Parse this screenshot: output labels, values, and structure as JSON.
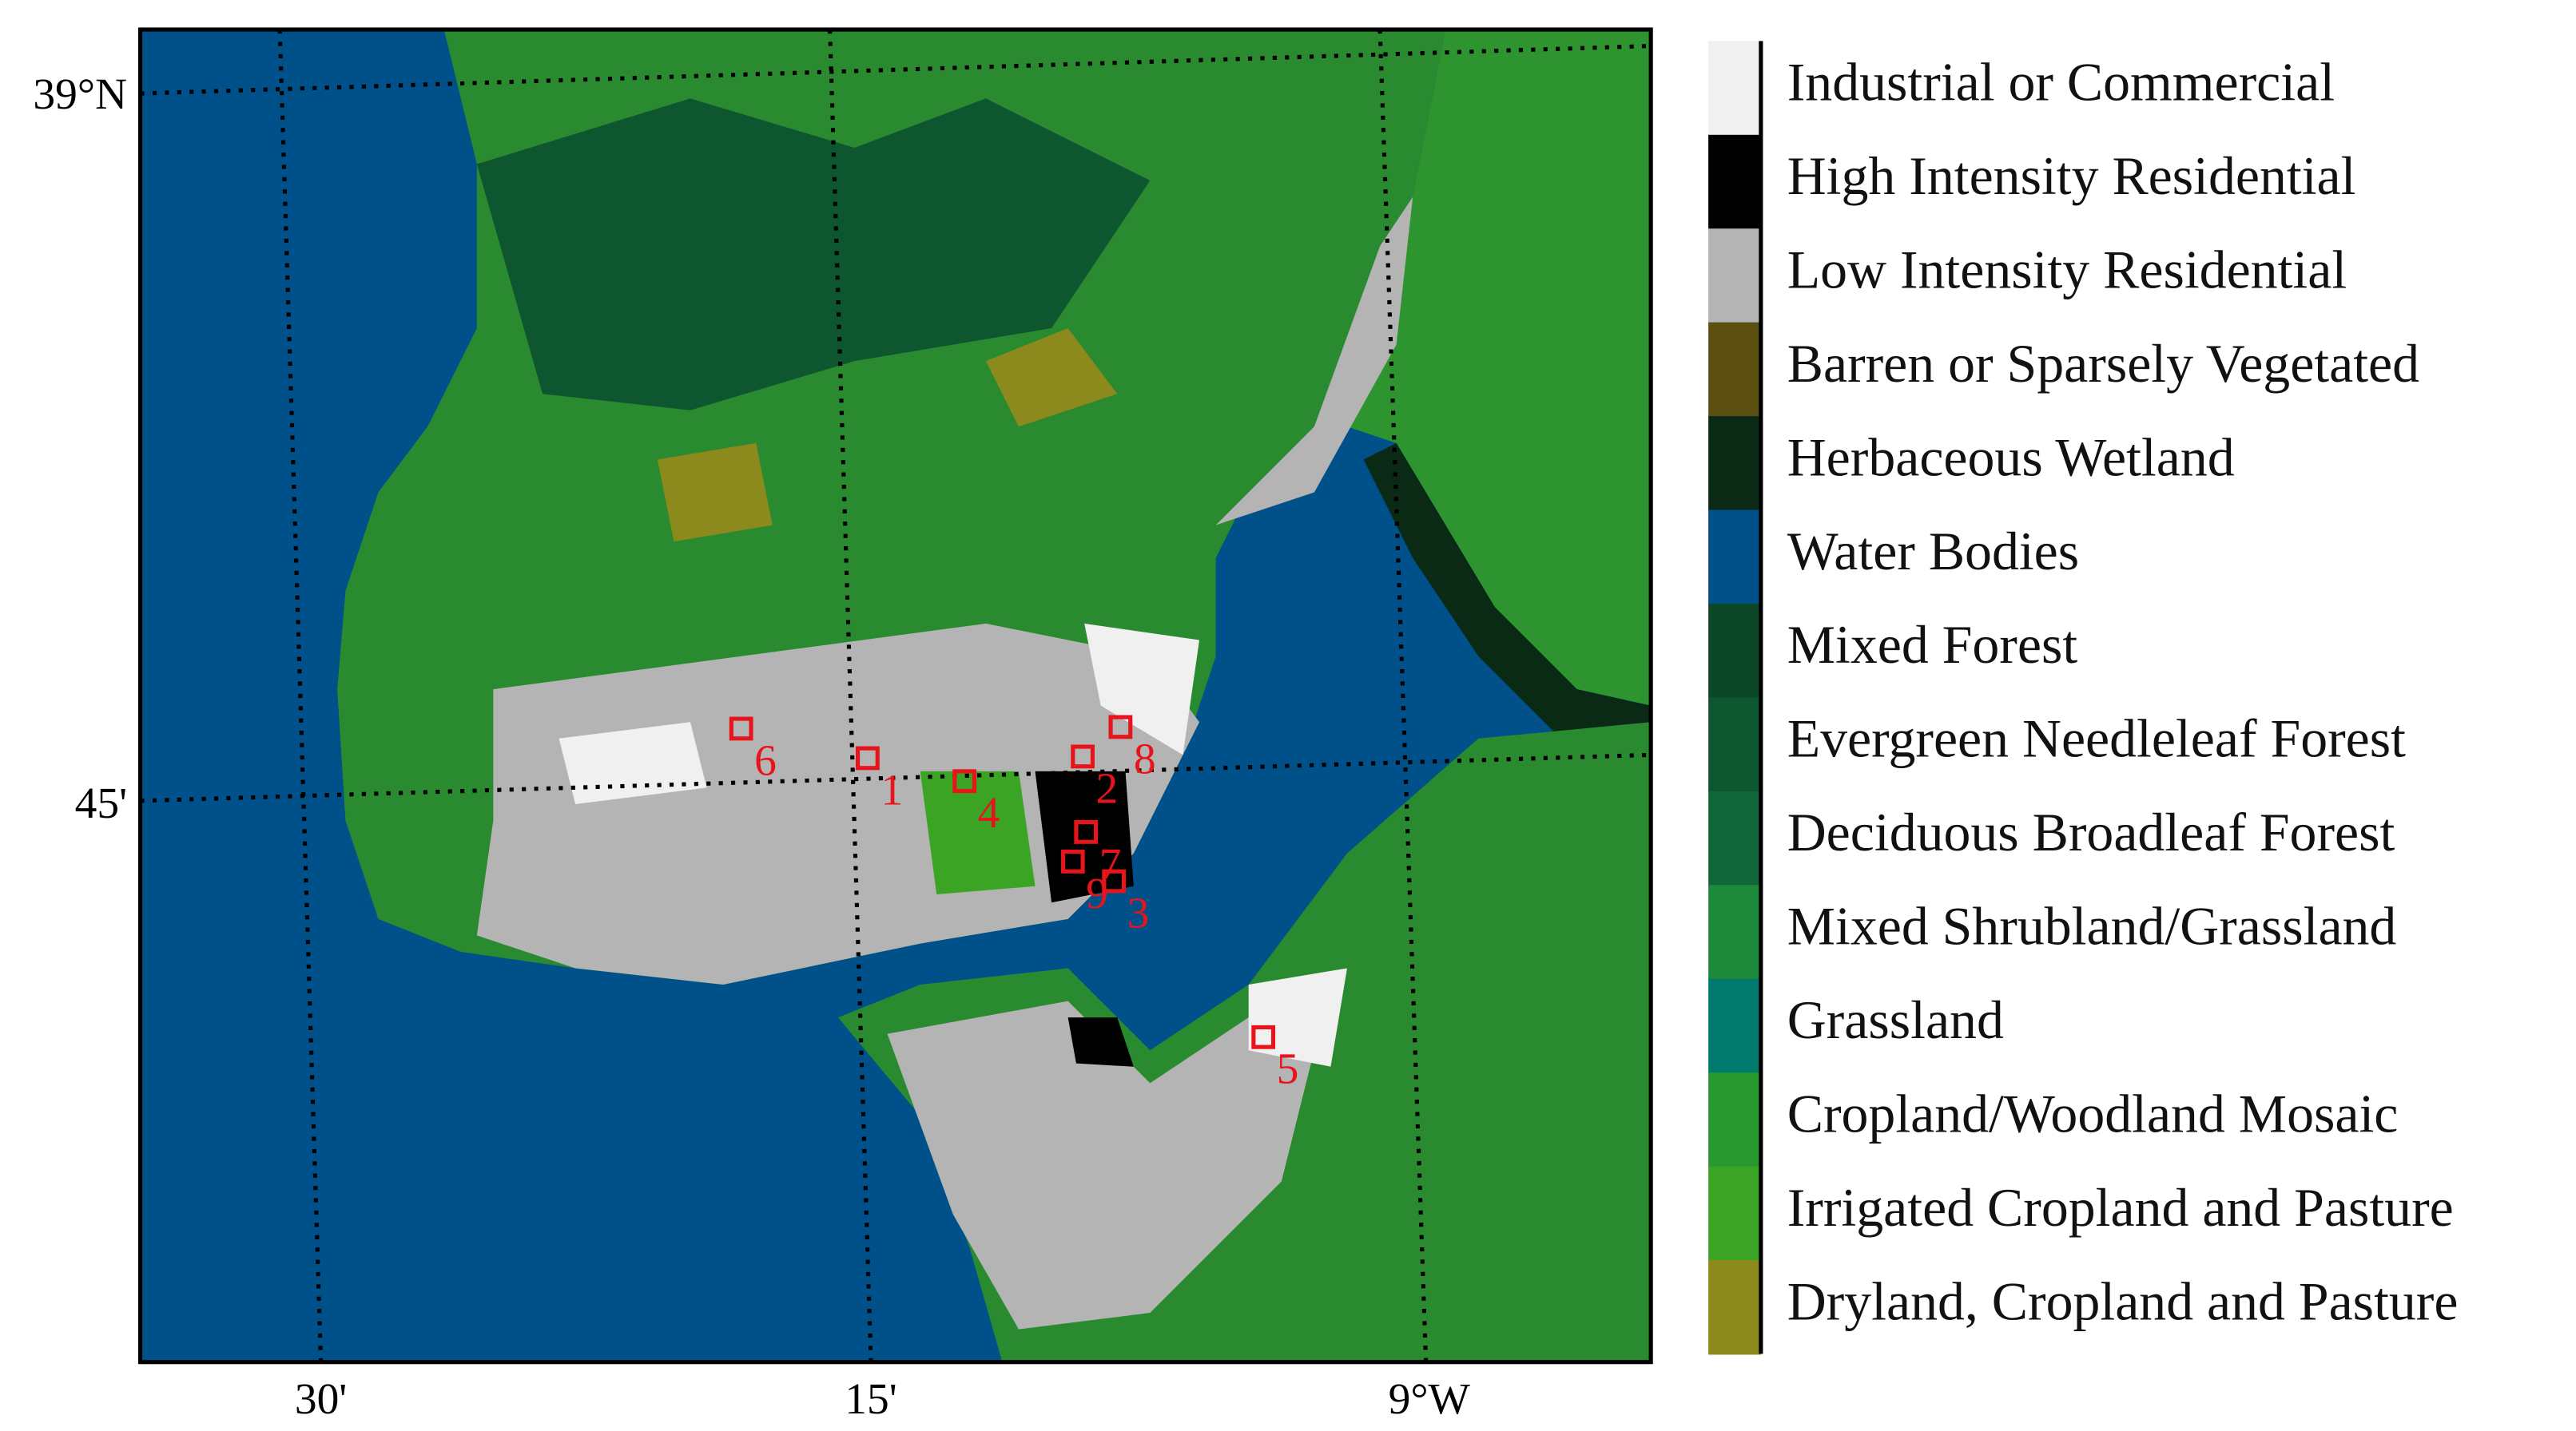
{
  "map": {
    "lat_labels": [
      "39°N",
      "45'"
    ],
    "lon_labels": [
      "30'",
      "15'",
      "9°W"
    ],
    "legend": [
      {
        "label": "Industrial or Commercial",
        "color": "#f0f0f0"
      },
      {
        "label": "High Intensity Residential",
        "color": "#000000"
      },
      {
        "label": "Low Intensity Residential",
        "color": "#b4b4b4"
      },
      {
        "label": "Barren or Sparsely Vegetated",
        "color": "#5a4e10"
      },
      {
        "label": "Herbaceous Wetland",
        "color": "#0a2a16"
      },
      {
        "label": "Water Bodies",
        "color": "#00518a"
      },
      {
        "label": "Mixed Forest",
        "color": "#0b4626"
      },
      {
        "label": "Evergreen Needleleaf Forest",
        "color": "#0e5630"
      },
      {
        "label": "Deciduous Broadleaf Forest",
        "color": "#106638"
      },
      {
        "label": "Mixed Shrubland/Grassland",
        "color": "#1c8a3a"
      },
      {
        "label": "Grassland",
        "color": "#007a6c"
      },
      {
        "label": "Cropland/Woodland Mosaic",
        "color": "#2a9830"
      },
      {
        "label": "Irrigated Cropland and Pasture",
        "color": "#3ca424"
      },
      {
        "label": "Dryland, Cropland and Pasture",
        "color": "#8c8a1c"
      }
    ],
    "sites": [
      {
        "label": "1"
      },
      {
        "label": "2"
      },
      {
        "label": "3"
      },
      {
        "label": "4"
      },
      {
        "label": "5"
      },
      {
        "label": "6"
      },
      {
        "label": "7"
      },
      {
        "label": "8"
      },
      {
        "label": "9"
      }
    ]
  }
}
